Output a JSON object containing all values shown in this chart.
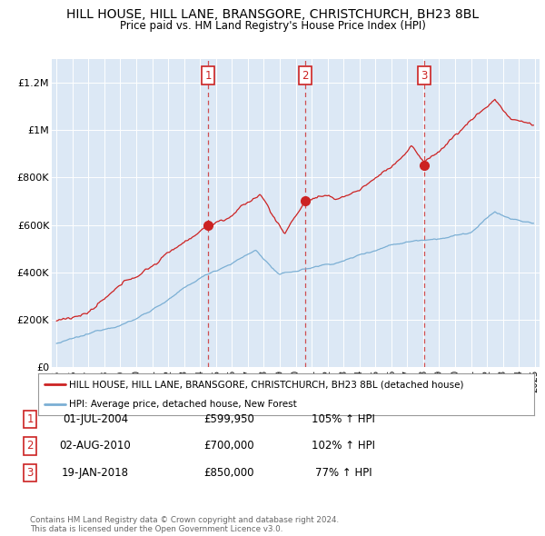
{
  "title": "HILL HOUSE, HILL LANE, BRANSGORE, CHRISTCHURCH, BH23 8BL",
  "subtitle": "Price paid vs. HM Land Registry's House Price Index (HPI)",
  "legend_line1": "HILL HOUSE, HILL LANE, BRANSGORE, CHRISTCHURCH, BH23 8BL (detached house)",
  "legend_line2": "HPI: Average price, detached house, New Forest",
  "footnote1": "Contains HM Land Registry data © Crown copyright and database right 2024.",
  "footnote2": "This data is licensed under the Open Government Licence v3.0.",
  "transactions": [
    {
      "num": 1,
      "date": "01-JUL-2004",
      "price": 599950,
      "pct": "105%",
      "dir": "↑"
    },
    {
      "num": 2,
      "date": "02-AUG-2010",
      "price": 700000,
      "pct": "102%",
      "dir": "↑"
    },
    {
      "num": 3,
      "date": "19-JAN-2018",
      "price": 850000,
      "pct": "77%",
      "dir": "↑"
    }
  ],
  "transaction_years": [
    2004.5,
    2010.583,
    2018.05
  ],
  "transaction_prices": [
    599950,
    700000,
    850000
  ],
  "ylim": [
    0,
    1300000
  ],
  "yticks": [
    0,
    200000,
    400000,
    600000,
    800000,
    1000000,
    1200000
  ],
  "ytick_labels": [
    "£0",
    "£200K",
    "£400K",
    "£600K",
    "£800K",
    "£1M",
    "£1.2M"
  ],
  "hpi_color": "#7bafd4",
  "price_color": "#cc2222",
  "background_plot": "#dce8f5",
  "background_fig": "#ffffff",
  "grid_color": "#ffffff",
  "vline_color": "#cc3333"
}
